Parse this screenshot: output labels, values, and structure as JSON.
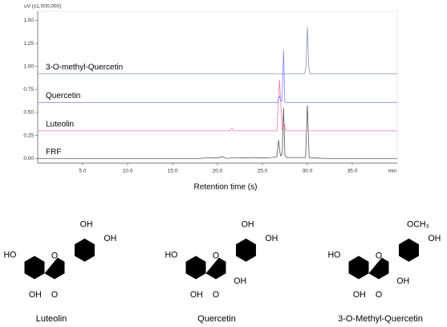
{
  "chart_data": {
    "type": "line",
    "ylabel": "uV (x1,000,000)",
    "xlabel": "Retention time (s)",
    "x_unit_label": "min",
    "xlim": [
      0,
      40
    ],
    "ylim": [
      -0.05,
      1.6
    ],
    "xticks": [
      {
        "value": 5,
        "label": "5.0"
      },
      {
        "value": 10,
        "label": "10.0"
      },
      {
        "value": 15,
        "label": "15.0"
      },
      {
        "value": 20,
        "label": "20.0"
      },
      {
        "value": 25,
        "label": "25.0"
      },
      {
        "value": 30,
        "label": "30.0"
      },
      {
        "value": 35,
        "label": "35.0"
      }
    ],
    "yticks": [
      {
        "value": 0,
        "label": "0.00"
      },
      {
        "value": 0.25,
        "label": "0.25"
      },
      {
        "value": 0.5,
        "label": "0.50"
      },
      {
        "value": 0.75,
        "label": "0.75"
      },
      {
        "value": 1,
        "label": "1.00"
      },
      {
        "value": 1.25,
        "label": "1.25"
      },
      {
        "value": 1.5,
        "label": "1.50"
      }
    ],
    "series": [
      {
        "name": "FRF",
        "color": "#555555",
        "x": [
          0,
          18,
          19,
          20,
          20.5,
          21,
          22,
          23,
          24,
          25,
          26,
          26.6,
          26.8,
          27.0,
          27.2,
          27.35,
          27.5,
          27.7,
          29.8,
          30.0,
          30.2,
          31,
          32,
          40
        ],
        "values": [
          0,
          0,
          0.01,
          0.005,
          0.02,
          0,
          0.01,
          0.005,
          0.01,
          0.005,
          0.01,
          0.02,
          0.2,
          0.03,
          0.05,
          0.55,
          0.04,
          0.01,
          0.01,
          0.58,
          0.01,
          0.005,
          0,
          0
        ]
      },
      {
        "name": "Luteolin",
        "color": "#e87aa8",
        "x": [
          0,
          21.4,
          21.6,
          21.8,
          26.6,
          26.9,
          27.2,
          27.4,
          27.6,
          40
        ],
        "values": [
          0.3,
          0.3,
          0.33,
          0.3,
          0.3,
          0.86,
          0.31,
          0.4,
          0.3,
          0.3
        ]
      },
      {
        "name": "Quercetin",
        "color": "#7f7fff",
        "x": [
          0,
          26.7,
          26.9,
          27.1,
          27.2,
          27.35,
          27.5,
          40
        ],
        "values": [
          0.61,
          0.61,
          0.68,
          0.62,
          0.65,
          1.18,
          0.61,
          0.61
        ]
      },
      {
        "name": "3-O-methyl-Quercetin",
        "color": "#8a8fc0",
        "x": [
          0,
          29.7,
          29.85,
          30.0,
          30.15,
          30.3,
          40
        ],
        "values": [
          0.92,
          0.92,
          1.0,
          1.43,
          1.0,
          0.92,
          0.92
        ]
      }
    ]
  },
  "structures": [
    {
      "name": "Luteolin",
      "labels": [
        "HO",
        "OH",
        "O",
        "O",
        "OH",
        "OH"
      ]
    },
    {
      "name": "Quercetin",
      "labels": [
        "HO",
        "OH",
        "O",
        "O",
        "OH",
        "OH",
        "OH"
      ]
    },
    {
      "name": "3-O-Methyl-Quercetin",
      "labels": [
        "HO",
        "OH",
        "O",
        "O",
        "OCH₃",
        "OH",
        "OH"
      ]
    }
  ]
}
